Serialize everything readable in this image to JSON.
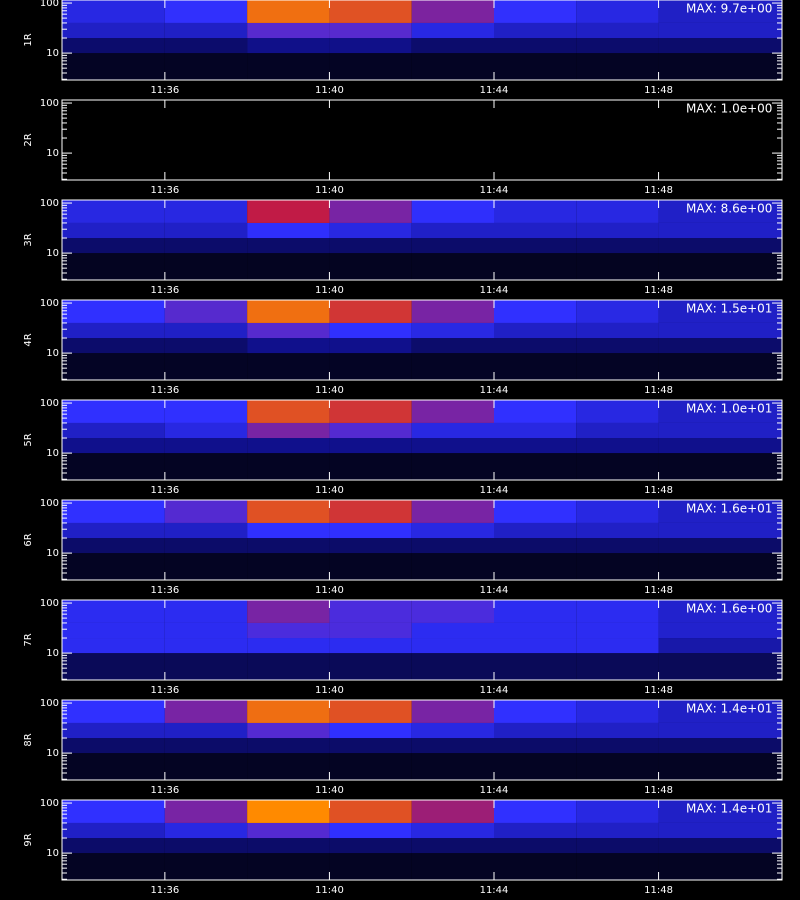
{
  "chart_data": [
    {
      "type": "heatmap",
      "ylabel": "1R",
      "max": {
        "value": 9.7,
        "label": "MAX: 9.7e+00"
      },
      "log_y": true,
      "colormap": [
        "#000000",
        "#10108c",
        "#3030ff",
        "#c01848",
        "#ff8a00",
        "#ffffe0"
      ],
      "x": [
        693.5,
        696,
        698,
        700,
        702,
        704,
        706,
        708,
        711
      ],
      "y": [
        2.9,
        10,
        20,
        40,
        115
      ],
      "values": [
        [
          0.5,
          0.5,
          0.5,
          0.5,
          0.5,
          0.5,
          0.5,
          0.5
        ],
        [
          1.5,
          1.5,
          1.9,
          1.9,
          1.5,
          1.5,
          1.5,
          1.5
        ],
        [
          2.9,
          2.9,
          4.4,
          4.4,
          3.4,
          2.9,
          2.9,
          2.9
        ],
        [
          3.4,
          3.9,
          7.3,
          6.8,
          4.9,
          3.9,
          3.4,
          2.9
        ]
      ],
      "xlim": [
        693.5,
        711
      ],
      "ylim": [
        2.9,
        115
      ],
      "xticks": [
        {
          "value": 696,
          "label": "11:36"
        },
        {
          "value": 700,
          "label": "11:40"
        },
        {
          "value": 704,
          "label": "11:44"
        },
        {
          "value": 708,
          "label": "11:48"
        }
      ],
      "yticks": [
        10,
        100
      ],
      "yminor": [
        3,
        4,
        5,
        6,
        7,
        8,
        9,
        20,
        30,
        40,
        50,
        60,
        70,
        80,
        90
      ]
    },
    {
      "type": "heatmap",
      "ylabel": "2R",
      "max": {
        "value": 1.0,
        "label": "MAX: 1.0e+00"
      },
      "log_y": true,
      "colormap": [
        "#000000",
        "#10108c",
        "#3030ff",
        "#c01848",
        "#ff8a00",
        "#ffffe0"
      ],
      "x": [
        693.5,
        696,
        698,
        700,
        702,
        704,
        706,
        708,
        711
      ],
      "y": [
        2.9,
        10,
        20,
        40,
        115
      ],
      "values": [
        [
          0,
          0,
          0,
          0,
          0,
          0,
          0,
          0
        ],
        [
          0,
          0,
          0,
          0,
          0,
          0,
          0,
          0
        ],
        [
          0,
          0,
          0,
          0,
          0,
          0,
          0,
          0
        ],
        [
          0,
          0,
          0,
          0,
          0,
          0,
          0,
          0
        ]
      ],
      "xlim": [
        693.5,
        711
      ],
      "ylim": [
        2.9,
        115
      ],
      "xticks": [
        {
          "value": 696,
          "label": "11:36"
        },
        {
          "value": 700,
          "label": "11:40"
        },
        {
          "value": 704,
          "label": "11:44"
        },
        {
          "value": 708,
          "label": "11:48"
        }
      ],
      "yticks": [
        10,
        100
      ],
      "yminor": [
        3,
        4,
        5,
        6,
        7,
        8,
        9,
        20,
        30,
        40,
        50,
        60,
        70,
        80,
        90
      ]
    },
    {
      "type": "heatmap",
      "ylabel": "3R",
      "max": {
        "value": 8.6,
        "label": "MAX: 8.6e+00"
      },
      "log_y": true,
      "colormap": [
        "#000000",
        "#10108c",
        "#3030ff",
        "#c01848",
        "#ff8a00",
        "#ffffe0"
      ],
      "x": [
        693.5,
        696,
        698,
        700,
        702,
        704,
        706,
        708,
        711
      ],
      "y": [
        2.9,
        10,
        20,
        40,
        115
      ],
      "values": [
        [
          0.4,
          0.4,
          0.4,
          0.4,
          0.4,
          0.4,
          0.4,
          0.4
        ],
        [
          1.3,
          1.3,
          1.3,
          1.3,
          1.3,
          1.3,
          1.3,
          1.3
        ],
        [
          2.6,
          2.6,
          3.4,
          3.0,
          2.6,
          2.6,
          2.6,
          2.6
        ],
        [
          3.0,
          3.0,
          5.2,
          4.3,
          3.4,
          3.0,
          3.0,
          2.6
        ]
      ],
      "xlim": [
        693.5,
        711
      ],
      "ylim": [
        2.9,
        115
      ],
      "xticks": [
        {
          "value": 696,
          "label": "11:36"
        },
        {
          "value": 700,
          "label": "11:40"
        },
        {
          "value": 704,
          "label": "11:44"
        },
        {
          "value": 708,
          "label": "11:48"
        }
      ],
      "yticks": [
        10,
        100
      ],
      "yminor": [
        3,
        4,
        5,
        6,
        7,
        8,
        9,
        20,
        30,
        40,
        50,
        60,
        70,
        80,
        90
      ]
    },
    {
      "type": "heatmap",
      "ylabel": "4R",
      "max": {
        "value": 15,
        "label": "MAX: 1.5e+01"
      },
      "log_y": true,
      "colormap": [
        "#000000",
        "#10108c",
        "#3030ff",
        "#c01848",
        "#ff8a00",
        "#ffffe0"
      ],
      "x": [
        693.5,
        696,
        698,
        700,
        702,
        704,
        706,
        708,
        711
      ],
      "y": [
        2.9,
        10,
        20,
        40,
        115
      ],
      "values": [
        [
          0.8,
          0.8,
          0.8,
          0.8,
          0.8,
          0.8,
          0.8,
          0.8
        ],
        [
          2.3,
          2.3,
          3.0,
          3.0,
          2.3,
          2.3,
          2.3,
          2.3
        ],
        [
          4.5,
          4.5,
          6.8,
          6.0,
          5.3,
          4.5,
          4.5,
          4.5
        ],
        [
          6.0,
          6.8,
          11.3,
          9.8,
          7.5,
          6.0,
          5.3,
          4.5
        ]
      ],
      "xlim": [
        693.5,
        711
      ],
      "ylim": [
        2.9,
        115
      ],
      "xticks": [
        {
          "value": 696,
          "label": "11:36"
        },
        {
          "value": 700,
          "label": "11:40"
        },
        {
          "value": 704,
          "label": "11:44"
        },
        {
          "value": 708,
          "label": "11:48"
        }
      ],
      "yticks": [
        10,
        100
      ],
      "yminor": [
        3,
        4,
        5,
        6,
        7,
        8,
        9,
        20,
        30,
        40,
        50,
        60,
        70,
        80,
        90
      ]
    },
    {
      "type": "heatmap",
      "ylabel": "5R",
      "max": {
        "value": 10,
        "label": "MAX: 1.0e+01"
      },
      "log_y": true,
      "colormap": [
        "#000000",
        "#10108c",
        "#3030ff",
        "#c01848",
        "#ff8a00",
        "#ffffe0"
      ],
      "x": [
        693.5,
        696,
        698,
        700,
        702,
        704,
        706,
        708,
        711
      ],
      "y": [
        2.9,
        10,
        20,
        40,
        115
      ],
      "values": [
        [
          0.5,
          0.5,
          0.5,
          0.5,
          0.5,
          0.5,
          0.5,
          0.5
        ],
        [
          2.0,
          2.0,
          2.0,
          2.0,
          2.0,
          2.0,
          2.0,
          2.0
        ],
        [
          3.0,
          3.5,
          5.0,
          4.5,
          3.5,
          3.5,
          3.0,
          3.0
        ],
        [
          4.0,
          4.0,
          7.0,
          6.5,
          5.0,
          4.0,
          3.5,
          3.0
        ]
      ],
      "xlim": [
        693.5,
        711
      ],
      "ylim": [
        2.9,
        115
      ],
      "xticks": [
        {
          "value": 696,
          "label": "11:36"
        },
        {
          "value": 700,
          "label": "11:40"
        },
        {
          "value": 704,
          "label": "11:44"
        },
        {
          "value": 708,
          "label": "11:48"
        }
      ],
      "yticks": [
        10,
        100
      ],
      "yminor": [
        3,
        4,
        5,
        6,
        7,
        8,
        9,
        20,
        30,
        40,
        50,
        60,
        70,
        80,
        90
      ]
    },
    {
      "type": "heatmap",
      "ylabel": "6R",
      "max": {
        "value": 16,
        "label": "MAX: 1.6e+01"
      },
      "log_y": true,
      "colormap": [
        "#000000",
        "#10108c",
        "#3030ff",
        "#c01848",
        "#ff8a00",
        "#ffffe0"
      ],
      "x": [
        693.5,
        696,
        698,
        700,
        702,
        704,
        706,
        708,
        711
      ],
      "y": [
        2.9,
        10,
        20,
        40,
        115
      ],
      "values": [
        [
          0.8,
          0.8,
          0.8,
          0.8,
          0.8,
          0.8,
          0.8,
          0.8
        ],
        [
          2.4,
          2.4,
          2.4,
          2.4,
          2.4,
          2.4,
          2.4,
          2.4
        ],
        [
          4.8,
          4.8,
          6.4,
          6.4,
          5.6,
          4.8,
          4.8,
          4.8
        ],
        [
          6.4,
          7.2,
          11.2,
          10.4,
          8.0,
          6.4,
          5.6,
          4.8
        ]
      ],
      "xlim": [
        693.5,
        711
      ],
      "ylim": [
        2.9,
        115
      ],
      "xticks": [
        {
          "value": 696,
          "label": "11:36"
        },
        {
          "value": 700,
          "label": "11:40"
        },
        {
          "value": 704,
          "label": "11:44"
        },
        {
          "value": 708,
          "label": "11:48"
        }
      ],
      "yticks": [
        10,
        100
      ],
      "yminor": [
        3,
        4,
        5,
        6,
        7,
        8,
        9,
        20,
        30,
        40,
        50,
        60,
        70,
        80,
        90
      ]
    },
    {
      "type": "heatmap",
      "ylabel": "7R",
      "max": {
        "value": 1.6,
        "label": "MAX: 1.6e+00"
      },
      "log_y": true,
      "colormap": [
        "#000000",
        "#10108c",
        "#3030ff",
        "#c01848",
        "#ff8a00",
        "#ffffe0"
      ],
      "x": [
        693.5,
        696,
        698,
        700,
        702,
        704,
        706,
        708,
        711
      ],
      "y": [
        2.9,
        10,
        20,
        40,
        115
      ],
      "values": [
        [
          0.2,
          0.2,
          0.2,
          0.2,
          0.2,
          0.2,
          0.2,
          0.2
        ],
        [
          0.6,
          0.6,
          0.6,
          0.6,
          0.6,
          0.6,
          0.6,
          0.4
        ],
        [
          0.6,
          0.6,
          0.7,
          0.7,
          0.6,
          0.6,
          0.6,
          0.5
        ],
        [
          0.6,
          0.6,
          0.8,
          0.7,
          0.7,
          0.6,
          0.6,
          0.5
        ]
      ],
      "xlim": [
        693.5,
        711
      ],
      "ylim": [
        2.9,
        115
      ],
      "xticks": [
        {
          "value": 696,
          "label": "11:36"
        },
        {
          "value": 700,
          "label": "11:40"
        },
        {
          "value": 704,
          "label": "11:44"
        },
        {
          "value": 708,
          "label": "11:48"
        }
      ],
      "yticks": [
        10,
        100
      ],
      "yminor": [
        3,
        4,
        5,
        6,
        7,
        8,
        9,
        20,
        30,
        40,
        50,
        60,
        70,
        80,
        90
      ]
    },
    {
      "type": "heatmap",
      "ylabel": "8R",
      "max": {
        "value": 14,
        "label": "MAX: 1.4e+01"
      },
      "log_y": true,
      "colormap": [
        "#000000",
        "#10108c",
        "#3030ff",
        "#c01848",
        "#ff8a00",
        "#ffffe0"
      ],
      "x": [
        693.5,
        696,
        698,
        700,
        702,
        704,
        706,
        708,
        711
      ],
      "y": [
        2.9,
        10,
        20,
        40,
        115
      ],
      "values": [
        [
          0.7,
          0.7,
          0.7,
          0.7,
          0.7,
          0.7,
          0.7,
          0.7
        ],
        [
          2.1,
          2.1,
          2.1,
          2.1,
          2.1,
          2.1,
          2.1,
          2.1
        ],
        [
          4.2,
          4.2,
          6.3,
          5.6,
          4.9,
          4.2,
          4.2,
          4.2
        ],
        [
          5.6,
          7.0,
          10.5,
          9.8,
          7.0,
          5.6,
          4.9,
          4.2
        ]
      ],
      "xlim": [
        693.5,
        711
      ],
      "ylim": [
        2.9,
        115
      ],
      "xticks": [
        {
          "value": 696,
          "label": "11:36"
        },
        {
          "value": 700,
          "label": "11:40"
        },
        {
          "value": 704,
          "label": "11:44"
        },
        {
          "value": 708,
          "label": "11:48"
        }
      ],
      "yticks": [
        10,
        100
      ],
      "yminor": [
        3,
        4,
        5,
        6,
        7,
        8,
        9,
        20,
        30,
        40,
        50,
        60,
        70,
        80,
        90
      ]
    },
    {
      "type": "heatmap",
      "ylabel": "9R",
      "max": {
        "value": 14,
        "label": "MAX: 1.4e+01"
      },
      "log_y": true,
      "colormap": [
        "#000000",
        "#10108c",
        "#3030ff",
        "#c01848",
        "#ff8a00",
        "#ffffe0"
      ],
      "x": [
        693.5,
        696,
        698,
        700,
        702,
        704,
        706,
        708,
        711
      ],
      "y": [
        2.9,
        10,
        20,
        40,
        115
      ],
      "values": [
        [
          0.7,
          0.7,
          0.7,
          0.7,
          0.7,
          0.7,
          0.7,
          0.7
        ],
        [
          2.1,
          2.1,
          2.1,
          2.1,
          2.1,
          2.1,
          2.1,
          2.1
        ],
        [
          4.2,
          4.9,
          6.3,
          5.6,
          4.9,
          4.2,
          4.2,
          4.2
        ],
        [
          5.6,
          7.0,
          11.2,
          9.8,
          7.7,
          5.6,
          4.9,
          4.2
        ]
      ],
      "xlim": [
        693.5,
        711
      ],
      "ylim": [
        2.9,
        115
      ],
      "xticks": [
        {
          "value": 696,
          "label": "11:36"
        },
        {
          "value": 700,
          "label": "11:40"
        },
        {
          "value": 704,
          "label": "11:44"
        },
        {
          "value": 708,
          "label": "11:48"
        }
      ],
      "yticks": [
        10,
        100
      ],
      "yminor": [
        3,
        4,
        5,
        6,
        7,
        8,
        9,
        20,
        30,
        40,
        50,
        60,
        70,
        80,
        90
      ]
    }
  ]
}
